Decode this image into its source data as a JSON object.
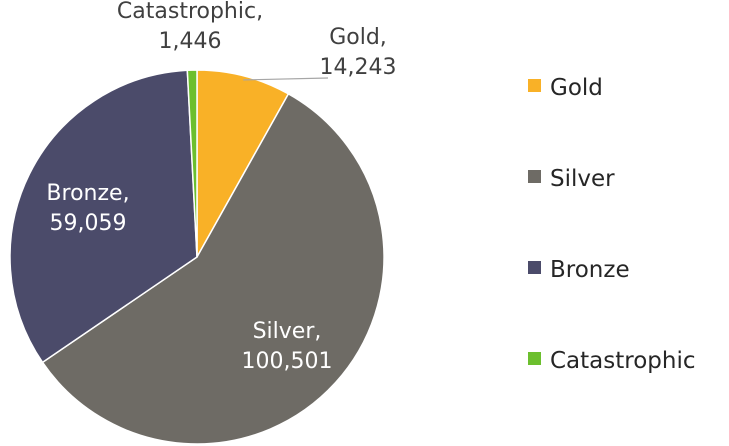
{
  "chart_data": {
    "type": "pie",
    "title": "",
    "start_angle_deg": 0,
    "direction": "clockwise",
    "legend_position": "right",
    "slices": [
      {
        "name": "Gold",
        "value": 14243,
        "value_label": "14,243",
        "color": "#F9B127",
        "label_color": "#404040"
      },
      {
        "name": "Silver",
        "value": 100501,
        "value_label": "100,501",
        "color": "#6E6B65",
        "label_color": "#ffffff"
      },
      {
        "name": "Bronze",
        "value": 59059,
        "value_label": "59,059",
        "color": "#4B4B6A",
        "label_color": "#ffffff"
      },
      {
        "name": "Catastrophic",
        "value": 1446,
        "value_label": "1,446",
        "color": "#6CBF2E",
        "label_color": "#404040"
      }
    ]
  }
}
